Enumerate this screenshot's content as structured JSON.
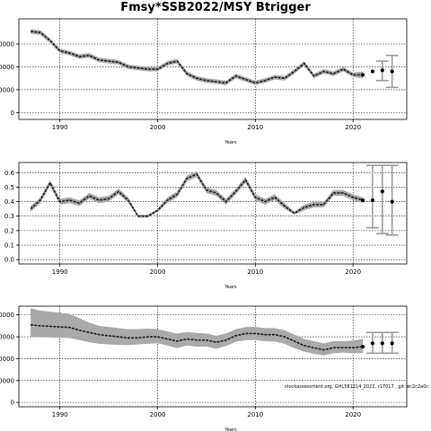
{
  "title": "Fmsy*SSB2022/MSY Btrigger",
  "credit": "stockassessment.org, GHL581214_2022, r17017 , git: ec2c2a0c",
  "colors": {
    "band": "#a9a9a9",
    "line": "#1a1a1a",
    "whisker": "#9a9a9a",
    "point": "#000000"
  },
  "chart_data": [
    {
      "type": "line",
      "title": "",
      "xlabel": "Years",
      "ylabel": "",
      "xlim": [
        1985.8,
        2025.5
      ],
      "ylim": [
        -3000,
        41000
      ],
      "grid": true,
      "xticks": [
        1990,
        2000,
        2010,
        2020
      ],
      "yticks": [
        0,
        10000,
        20000,
        30000
      ],
      "ytick_labels": [
        "0",
        "0000",
        "0000",
        "0000"
      ],
      "x": [
        1987,
        1988,
        1989,
        1990,
        1991,
        1992,
        1993,
        1994,
        1995,
        1996,
        1997,
        1998,
        1999,
        2000,
        2001,
        2002,
        2003,
        2004,
        2005,
        2006,
        2007,
        2008,
        2009,
        2010,
        2011,
        2012,
        2013,
        2014,
        2015,
        2016,
        2017,
        2018,
        2019,
        2020,
        2021
      ],
      "series": [
        {
          "values": [
            35500,
            35000,
            31500,
            27000,
            26000,
            24500,
            25000,
            23000,
            22500,
            22000,
            20000,
            19500,
            19000,
            19000,
            21500,
            22500,
            17000,
            15000,
            14000,
            13500,
            13000,
            16000,
            14500,
            13000,
            14000,
            15500,
            15000,
            18000,
            21500,
            16000,
            18000,
            17000,
            19000,
            16500,
            16500
          ],
          "lower": [
            34500,
            34000,
            30500,
            26000,
            25000,
            23500,
            24000,
            22000,
            21500,
            21000,
            19000,
            18500,
            18000,
            18000,
            20500,
            21500,
            16000,
            14000,
            13000,
            12500,
            12000,
            15000,
            13500,
            12000,
            13000,
            14500,
            14000,
            17000,
            20500,
            15000,
            17000,
            16000,
            18000,
            15500,
            15000
          ],
          "upper": [
            36500,
            36000,
            32500,
            28000,
            27000,
            25500,
            26000,
            24000,
            23500,
            23000,
            21000,
            20500,
            20000,
            20000,
            22500,
            23500,
            18000,
            16000,
            15000,
            14500,
            14000,
            17000,
            15500,
            14000,
            15000,
            16500,
            16000,
            19000,
            22500,
            17000,
            19000,
            18000,
            20000,
            17500,
            18000
          ]
        }
      ],
      "forecast": [
        {
          "x": 2021,
          "median": 16500,
          "low": 16500,
          "high": 16500
        },
        {
          "x": 2022,
          "median": 18000,
          "low": 18000,
          "high": 18000
        },
        {
          "x": 2023,
          "median": 18500,
          "low": 14000,
          "high": 22500
        },
        {
          "x": 2024,
          "median": 18000,
          "low": 11000,
          "high": 25000
        }
      ]
    },
    {
      "type": "line",
      "title": "",
      "xlabel": "Years",
      "ylabel": "",
      "xlim": [
        1985.8,
        2025.5
      ],
      "ylim": [
        -0.03,
        0.67
      ],
      "grid": true,
      "xticks": [
        1990,
        2000,
        2010,
        2020
      ],
      "yticks": [
        0.0,
        0.1,
        0.2,
        0.3,
        0.4,
        0.5,
        0.6
      ],
      "ytick_labels": [
        "0.0",
        "0.1",
        "0.2",
        "0.3",
        "0.4",
        "0.5",
        "0.6"
      ],
      "x": [
        1987,
        1988,
        1989,
        1990,
        1991,
        1992,
        1993,
        1994,
        1995,
        1996,
        1997,
        1998,
        1999,
        2000,
        2001,
        2002,
        2003,
        2004,
        2005,
        2006,
        2007,
        2008,
        2009,
        2010,
        2011,
        2012,
        2013,
        2014,
        2015,
        2016,
        2017,
        2018,
        2019,
        2020,
        2021
      ],
      "series": [
        {
          "values": [
            0.35,
            0.41,
            0.53,
            0.4,
            0.41,
            0.39,
            0.44,
            0.41,
            0.42,
            0.47,
            0.41,
            0.3,
            0.3,
            0.34,
            0.41,
            0.45,
            0.56,
            0.59,
            0.48,
            0.46,
            0.4,
            0.47,
            0.55,
            0.43,
            0.4,
            0.43,
            0.37,
            0.32,
            0.36,
            0.38,
            0.38,
            0.46,
            0.46,
            0.43,
            0.41
          ],
          "lower": [
            0.33,
            0.39,
            0.51,
            0.38,
            0.39,
            0.37,
            0.42,
            0.39,
            0.4,
            0.45,
            0.39,
            0.29,
            0.29,
            0.33,
            0.39,
            0.43,
            0.54,
            0.57,
            0.46,
            0.44,
            0.38,
            0.45,
            0.53,
            0.41,
            0.38,
            0.41,
            0.35,
            0.31,
            0.34,
            0.36,
            0.36,
            0.44,
            0.44,
            0.41,
            0.39
          ],
          "upper": [
            0.37,
            0.43,
            0.55,
            0.42,
            0.43,
            0.41,
            0.46,
            0.43,
            0.44,
            0.49,
            0.43,
            0.31,
            0.31,
            0.35,
            0.43,
            0.47,
            0.58,
            0.61,
            0.5,
            0.48,
            0.42,
            0.49,
            0.57,
            0.45,
            0.42,
            0.45,
            0.39,
            0.33,
            0.38,
            0.4,
            0.4,
            0.48,
            0.48,
            0.45,
            0.43
          ]
        }
      ],
      "forecast": [
        {
          "x": 2021,
          "median": 0.41,
          "low": 0.41,
          "high": 0.41
        },
        {
          "x": 2022,
          "median": 0.41,
          "low": 0.22,
          "high": 0.65
        },
        {
          "x": 2023,
          "median": 0.47,
          "low": 0.18,
          "high": 0.65
        },
        {
          "x": 2024,
          "median": 0.4,
          "low": 0.17,
          "high": 0.65
        }
      ]
    },
    {
      "type": "line",
      "title": "",
      "xlabel": "Years",
      "ylabel": "",
      "xlim": [
        1985.8,
        2025.5
      ],
      "ylim": [
        -2000,
        44000
      ],
      "grid": true,
      "xticks": [
        1990,
        2000,
        2010,
        2020
      ],
      "yticks": [
        0,
        10000,
        20000,
        30000,
        40000
      ],
      "ytick_labels": [
        "0",
        "0000",
        "0000",
        "0000",
        "0000"
      ],
      "x": [
        1987,
        1988,
        1989,
        1990,
        1991,
        1992,
        1993,
        1994,
        1995,
        1996,
        1997,
        1998,
        1999,
        2000,
        2001,
        2002,
        2003,
        2004,
        2005,
        2006,
        2007,
        2008,
        2009,
        2010,
        2011,
        2012,
        2013,
        2014,
        2015,
        2016,
        2017,
        2018,
        2019,
        2020,
        2021
      ],
      "series": [
        {
          "values": [
            35500,
            35000,
            34800,
            34500,
            34300,
            33000,
            32000,
            31000,
            30500,
            30000,
            29500,
            29500,
            30000,
            30000,
            29000,
            28000,
            29000,
            28500,
            28500,
            27500,
            28500,
            30500,
            31500,
            31500,
            31000,
            31000,
            30000,
            28000,
            26000,
            25000,
            24000,
            25000,
            25000,
            25000,
            25500
          ],
          "lower": [
            30000,
            29800,
            29700,
            29500,
            29400,
            28500,
            27500,
            26800,
            26500,
            26300,
            26200,
            26500,
            26800,
            27000,
            26000,
            24800,
            26000,
            25500,
            25500,
            24500,
            25800,
            27700,
            28500,
            28500,
            28000,
            27800,
            26800,
            24800,
            23200,
            22200,
            21500,
            22500,
            22800,
            22500,
            22500
          ],
          "upper": [
            43000,
            42000,
            41500,
            41000,
            40500,
            38500,
            36500,
            35000,
            34500,
            34000,
            33500,
            33500,
            33800,
            33500,
            32500,
            31500,
            32200,
            31800,
            31500,
            30500,
            31500,
            33500,
            34500,
            34500,
            34000,
            34000,
            33000,
            31000,
            29000,
            28000,
            27000,
            28000,
            28000,
            28300,
            29000
          ]
        }
      ],
      "forecast": [
        {
          "x": 2021,
          "median": 25500,
          "low": 25500,
          "high": 25500
        },
        {
          "x": 2022,
          "median": 27000,
          "low": 22500,
          "high": 32000
        },
        {
          "x": 2023,
          "median": 27000,
          "low": 22500,
          "high": 32000
        },
        {
          "x": 2024,
          "median": 27000,
          "low": 22500,
          "high": 32000
        }
      ]
    }
  ]
}
